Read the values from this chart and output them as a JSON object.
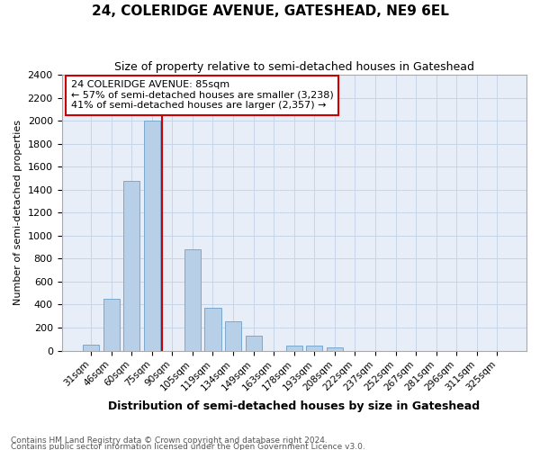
{
  "title": "24, COLERIDGE AVENUE, GATESHEAD, NE9 6EL",
  "subtitle": "Size of property relative to semi-detached houses in Gateshead",
  "xlabel": "Distribution of semi-detached houses by size in Gateshead",
  "ylabel": "Number of semi-detached properties",
  "categories": [
    "31sqm",
    "46sqm",
    "60sqm",
    "75sqm",
    "90sqm",
    "105sqm",
    "119sqm",
    "134sqm",
    "149sqm",
    "163sqm",
    "178sqm",
    "193sqm",
    "208sqm",
    "222sqm",
    "237sqm",
    "252sqm",
    "267sqm",
    "281sqm",
    "296sqm",
    "311sqm",
    "325sqm"
  ],
  "values": [
    50,
    450,
    1480,
    2000,
    0,
    880,
    370,
    255,
    130,
    0,
    40,
    40,
    25,
    0,
    0,
    0,
    0,
    0,
    0,
    0,
    0
  ],
  "bar_color": "#b8cfe8",
  "bar_edge_color": "#7aa8d0",
  "vline_x": 3.5,
  "vline_color": "#cc0000",
  "annotation_line1": "24 COLERIDGE AVENUE: 85sqm",
  "annotation_line2": "← 57% of semi-detached houses are smaller (3,238)",
  "annotation_line3": "41% of semi-detached houses are larger (2,357) →",
  "annotation_box_color": "#ffffff",
  "annotation_box_edge": "#cc0000",
  "ylim": [
    0,
    2400
  ],
  "yticks": [
    0,
    200,
    400,
    600,
    800,
    1000,
    1200,
    1400,
    1600,
    1800,
    2000,
    2200,
    2400
  ],
  "grid_color": "#c8d4e8",
  "background_color": "#e8eef8",
  "footnote1": "Contains HM Land Registry data © Crown copyright and database right 2024.",
  "footnote2": "Contains public sector information licensed under the Open Government Licence v3.0."
}
